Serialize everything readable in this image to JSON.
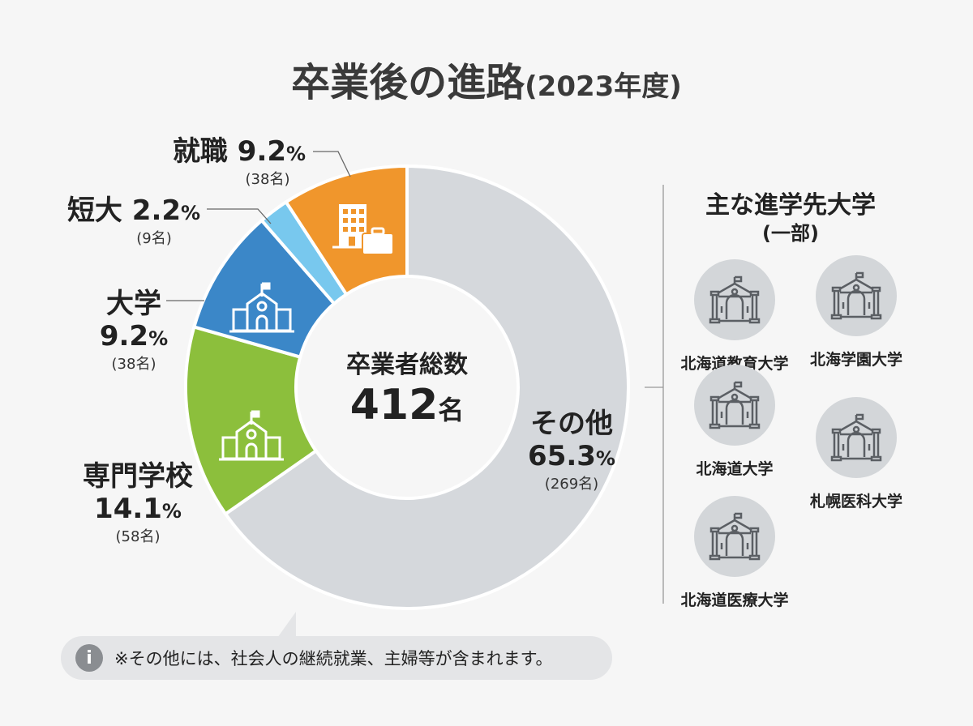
{
  "title": {
    "main": "卒業後の進路",
    "year": "(2023年度)"
  },
  "center": {
    "label": "卒業者総数",
    "total": "412",
    "unit": "名"
  },
  "chart_data": {
    "type": "pie",
    "donut": true,
    "start": "top, clockwise",
    "slices": [
      {
        "name": "その他",
        "percent": 65.3,
        "pct_label": "65.3",
        "count_label": "(269名)",
        "count": 269,
        "color": "#d5d8dc"
      },
      {
        "name": "専門学校",
        "percent": 14.1,
        "pct_label": "14.1",
        "count_label": "(58名)",
        "count": 58,
        "color": "#8cbf3c",
        "icon": "school-building-icon"
      },
      {
        "name": "大学",
        "percent": 9.2,
        "pct_label": "9.2",
        "count_label": "(38名)",
        "count": 38,
        "color": "#3b87c8",
        "icon": "university-building-icon"
      },
      {
        "name": "短大",
        "percent": 2.2,
        "pct_label": "2.2",
        "count_label": "(9名)",
        "count": 9,
        "color": "#78c8ee"
      },
      {
        "name": "就職",
        "percent": 9.2,
        "pct_label": "9.2",
        "count_label": "(38名)",
        "count": 38,
        "color": "#f0962c",
        "icon": "office-briefcase-icon"
      }
    ],
    "pct_unit": "%"
  },
  "universities": {
    "title": "主な進学先大学",
    "subtitle": "(一部)",
    "items": [
      "北海道教育大学",
      "北海学園大学",
      "北海道大学",
      "札幌医科大学",
      "北海道医療大学"
    ]
  },
  "note": {
    "icon": "info-icon",
    "text": "※その他には、社会人の継続就業、主婦等が含まれます。",
    "icon_glyph": "i"
  }
}
